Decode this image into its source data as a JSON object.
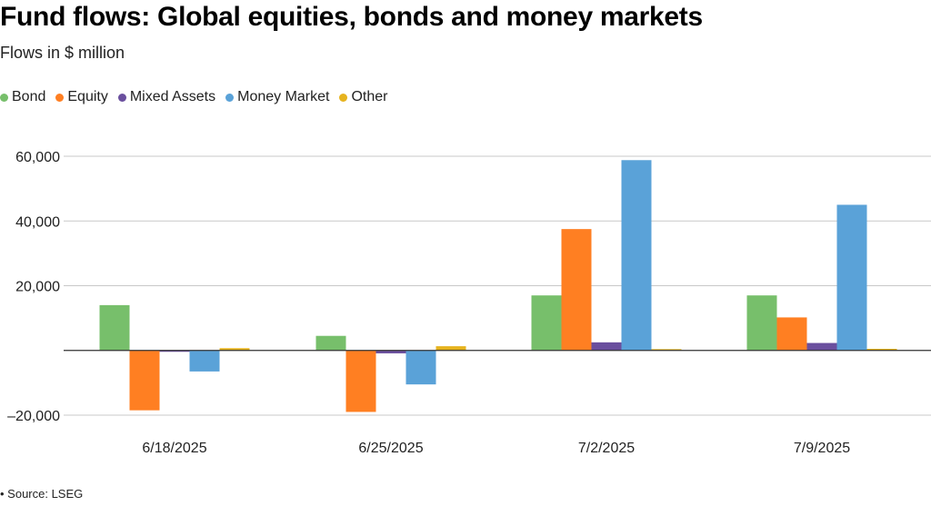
{
  "title": "Fund flows: Global equities, bonds and money markets",
  "subtitle": "Flows in $ million",
  "source": "• Source: LSEG",
  "colors": {
    "Bond": "#77bf6b",
    "Equity": "#ff7f22",
    "Mixed Assets": "#6a4f9e",
    "Money Market": "#5aa2d8",
    "Other": "#e6b31e"
  },
  "chart_data": {
    "type": "bar",
    "categories": [
      "6/18/2025",
      "6/25/2025",
      "7/2/2025",
      "7/9/2025"
    ],
    "series": [
      {
        "name": "Bond",
        "values": [
          14000,
          4500,
          17000,
          17000
        ]
      },
      {
        "name": "Equity",
        "values": [
          -18500,
          -19000,
          37500,
          10200
        ]
      },
      {
        "name": "Mixed Assets",
        "values": [
          -300,
          -900,
          2500,
          2300
        ]
      },
      {
        "name": "Money Market",
        "values": [
          -6500,
          -10500,
          58800,
          45000
        ]
      },
      {
        "name": "Other",
        "values": [
          700,
          1300,
          400,
          500
        ]
      }
    ],
    "ylim": [
      -20000,
      60000
    ],
    "yticks": [
      -20000,
      20000,
      40000,
      60000
    ],
    "ytick_labels": [
      "–20,000",
      "20,000",
      "40,000",
      "60,000"
    ],
    "grid": true,
    "legend_position": "top-left"
  }
}
